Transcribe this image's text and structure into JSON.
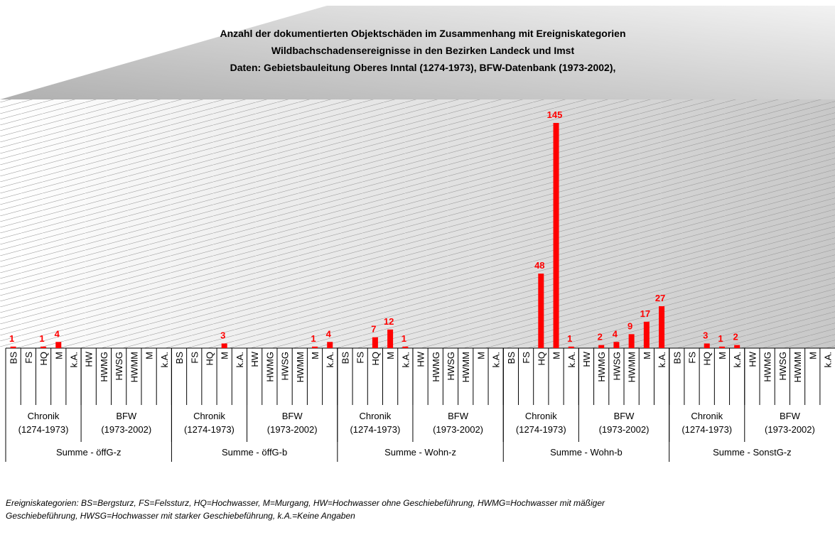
{
  "chart_data": {
    "type": "bar",
    "color": "#ff0000",
    "title": [
      "Anzahl der dokumentierten Objektschäden im Zusammenhang mit  Ereigniskategorien",
      "Wildbachschadensereignisse in den Bezirken  Landeck und Imst",
      "Daten: Gebietsbauleitung Oberes Inntal (1274-1973), BFW-Datenbank (1973-2002),"
    ],
    "groups": [
      {
        "name": "Summe - öffG-z",
        "subgroups": [
          {
            "name": "Chronik",
            "period": "(1274-1973)",
            "categories": [
              "BS",
              "FS",
              "HQ",
              "M",
              "k.A."
            ],
            "values": [
              1,
              null,
              1,
              4,
              null
            ]
          },
          {
            "name": "BFW",
            "period": "(1973-2002)",
            "categories": [
              "HW",
              "HWMG",
              "HWSG",
              "HWMM",
              "M",
              "k.A."
            ],
            "values": [
              null,
              null,
              null,
              null,
              null,
              null
            ]
          }
        ]
      },
      {
        "name": "Summe - öffG-b",
        "subgroups": [
          {
            "name": "Chronik",
            "period": "(1274-1973)",
            "categories": [
              "BS",
              "FS",
              "HQ",
              "M",
              "k.A."
            ],
            "values": [
              null,
              null,
              null,
              3,
              null
            ]
          },
          {
            "name": "BFW",
            "period": "(1973-2002)",
            "categories": [
              "HW",
              "HWMG",
              "HWSG",
              "HWMM",
              "M",
              "k.A."
            ],
            "values": [
              null,
              null,
              null,
              null,
              1,
              4
            ]
          }
        ]
      },
      {
        "name": "Summe - Wohn-z",
        "subgroups": [
          {
            "name": "Chronik",
            "period": "(1274-1973)",
            "categories": [
              "BS",
              "FS",
              "HQ",
              "M",
              "k.A."
            ],
            "values": [
              null,
              null,
              7,
              12,
              1
            ]
          },
          {
            "name": "BFW",
            "period": "(1973-2002)",
            "categories": [
              "HW",
              "HWMG",
              "HWSG",
              "HWMM",
              "M",
              "k.A."
            ],
            "values": [
              null,
              null,
              null,
              null,
              null,
              null
            ]
          }
        ]
      },
      {
        "name": "Summe - Wohn-b",
        "subgroups": [
          {
            "name": "Chronik",
            "period": "(1274-1973)",
            "categories": [
              "BS",
              "FS",
              "HQ",
              "M",
              "k.A."
            ],
            "values": [
              null,
              null,
              48,
              145,
              1
            ]
          },
          {
            "name": "BFW",
            "period": "(1973-2002)",
            "categories": [
              "HW",
              "HWMG",
              "HWSG",
              "HWMM",
              "M",
              "k.A."
            ],
            "values": [
              null,
              2,
              4,
              9,
              17,
              27
            ]
          }
        ]
      },
      {
        "name": "Summe - SonstG-z",
        "subgroups": [
          {
            "name": "Chronik",
            "period": "(1274-1973)",
            "categories": [
              "BS",
              "FS",
              "HQ",
              "M",
              "k.A."
            ],
            "values": [
              null,
              null,
              3,
              1,
              2
            ]
          },
          {
            "name": "BFW",
            "period": "(1973-2002)",
            "categories": [
              "HW",
              "HWMG",
              "HWSG",
              "HWMM",
              "M",
              "k.A."
            ],
            "values": [
              null,
              null,
              null,
              null,
              null,
              null
            ]
          }
        ]
      }
    ],
    "footnote": [
      "Ereigniskategorien: BS=Bergsturz, FS=Felssturz, HQ=Hochwasser, M=Murgang, HW=Hochwasser ohne Geschiebeführung, HWMG=Hochwasser mit mäßiger",
      "Geschiebeführung, HWSG=Hochwasser mit starker Geschiebeführung, k.A.=Keine Angaben"
    ]
  }
}
